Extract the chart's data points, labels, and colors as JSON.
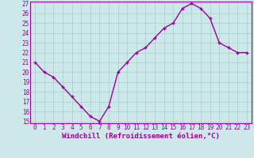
{
  "x": [
    0,
    1,
    2,
    3,
    4,
    5,
    6,
    7,
    8,
    9,
    10,
    11,
    12,
    13,
    14,
    15,
    16,
    17,
    18,
    19,
    20,
    21,
    22,
    23
  ],
  "y": [
    21,
    20,
    19.5,
    18.5,
    17.5,
    16.5,
    15.5,
    15,
    16.5,
    20,
    21,
    22,
    22.5,
    23.5,
    24.5,
    25,
    26.5,
    27,
    26.5,
    25.5,
    23,
    22.5,
    22,
    22
  ],
  "line_color": "#990099",
  "marker": "+",
  "bg_color": "#cce8e8",
  "grid_color": "#aacccc",
  "xlabel": "Windchill (Refroidissement éolien,°C)",
  "xlabel_color": "#990099",
  "tick_color": "#990099",
  "ylim": [
    15,
    27
  ],
  "xlim": [
    -0.5,
    23.5
  ],
  "yticks": [
    15,
    16,
    17,
    18,
    19,
    20,
    21,
    22,
    23,
    24,
    25,
    26,
    27
  ],
  "xticks": [
    0,
    1,
    2,
    3,
    4,
    5,
    6,
    7,
    8,
    9,
    10,
    11,
    12,
    13,
    14,
    15,
    16,
    17,
    18,
    19,
    20,
    21,
    22,
    23
  ],
  "xtick_labels": [
    "0",
    "1",
    "2",
    "3",
    "4",
    "5",
    "6",
    "7",
    "8",
    "9",
    "10",
    "11",
    "12",
    "13",
    "14",
    "15",
    "16",
    "17",
    "18",
    "19",
    "20",
    "21",
    "22",
    "23"
  ],
  "tick_fontsize": 5.5,
  "xlabel_fontsize": 6.5,
  "marker_size": 3,
  "line_width": 1.0
}
